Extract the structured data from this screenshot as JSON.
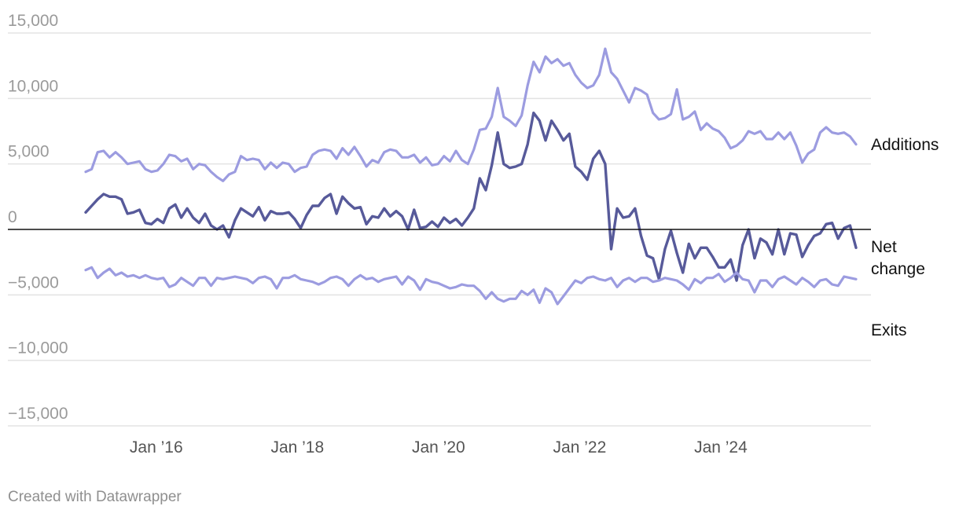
{
  "chart_data": {
    "type": "line",
    "y_ticks": [
      15000,
      10000,
      5000,
      0,
      -5000,
      -10000,
      -15000
    ],
    "y_tick_labels": [
      "15,000",
      "10,000",
      "5,000",
      "0",
      "−5,000",
      "−10,000",
      "−15,000"
    ],
    "ylim": [
      -15000,
      15000
    ],
    "x_ticks": [
      "2016-01",
      "2018-01",
      "2020-01",
      "2022-01",
      "2024-01"
    ],
    "x_tick_labels": [
      "Jan ’16",
      "Jan ’18",
      "Jan ’20",
      "Jan ’22",
      "Jan ’24"
    ],
    "x_start": "2015-01",
    "x_end": "2025-12",
    "grid": true,
    "legend": "inline labels at right end of lines",
    "series": [
      {
        "name": "Additions",
        "color": "#9c9ce0",
        "values": [
          4400,
          4600,
          5900,
          6000,
          5500,
          5900,
          5500,
          5000,
          5100,
          5200,
          4600,
          4400,
          4500,
          5000,
          5700,
          5600,
          5200,
          5400,
          4600,
          5000,
          4900,
          4400,
          4000,
          3700,
          4200,
          4400,
          5600,
          5300,
          5400,
          5300,
          4600,
          5100,
          4700,
          5100,
          5000,
          4400,
          4700,
          4800,
          5700,
          6000,
          6100,
          6000,
          5400,
          6200,
          5700,
          6300,
          5600,
          4800,
          5300,
          5100,
          5900,
          6100,
          6000,
          5500,
          5500,
          5700,
          5100,
          5500,
          4900,
          5000,
          5600,
          5200,
          6000,
          5300,
          5000,
          6100,
          7600,
          7700,
          8600,
          10800,
          8600,
          8300,
          7900,
          8700,
          11000,
          12800,
          12000,
          13200,
          12700,
          13000,
          12500,
          12700,
          11800,
          11200,
          10800,
          11000,
          11800,
          13800,
          12000,
          11500,
          10600,
          9700,
          10800,
          10600,
          10300,
          8900,
          8400,
          8500,
          8800,
          10700,
          8400,
          8600,
          9000,
          7600,
          8100,
          7700,
          7500,
          7000,
          6200,
          6400,
          6800,
          7500,
          7300,
          7500,
          6900,
          6900,
          7400,
          6900,
          7400,
          6400,
          5100,
          5800,
          6100,
          7400,
          7800,
          7400,
          7300,
          7400,
          7100,
          6500
        ]
      },
      {
        "name": "Net change",
        "color": "#575a9a",
        "values": [
          1300,
          1800,
          2300,
          2700,
          2500,
          2500,
          2300,
          1200,
          1300,
          1500,
          500,
          400,
          800,
          500,
          1600,
          1900,
          900,
          1600,
          900,
          500,
          1200,
          300,
          0,
          300,
          -600,
          700,
          1600,
          1300,
          1000,
          1700,
          700,
          1400,
          1200,
          1200,
          1300,
          800,
          100,
          1100,
          1800,
          1800,
          2400,
          2700,
          1200,
          2500,
          2000,
          1600,
          1700,
          400,
          1000,
          900,
          1600,
          1000,
          1400,
          1000,
          0,
          1500,
          100,
          200,
          600,
          200,
          900,
          500,
          800,
          300,
          900,
          1600,
          3900,
          3000,
          4900,
          7400,
          5000,
          4700,
          4800,
          5000,
          6500,
          8900,
          8300,
          6800,
          8300,
          7600,
          6800,
          7300,
          4800,
          4400,
          3800,
          5400,
          6000,
          5000,
          -1500,
          1600,
          900,
          1000,
          1600,
          -500,
          -2000,
          -2200,
          -3800,
          -1500,
          -100,
          -1800,
          -3300,
          -1100,
          -2200,
          -1400,
          -1400,
          -2100,
          -2900,
          -2900,
          -2300,
          -3900,
          -1200,
          0,
          -2200,
          -700,
          -1000,
          -1900,
          0,
          -1900,
          -300,
          -400,
          -2100,
          -1200,
          -500,
          -300,
          400,
          500,
          -700,
          100,
          300,
          -1400
        ]
      },
      {
        "name": "Exits",
        "color": "#9c9ce0",
        "values": [
          -3100,
          -2900,
          -3700,
          -3300,
          -3000,
          -3500,
          -3300,
          -3600,
          -3500,
          -3700,
          -3500,
          -3700,
          -3800,
          -3700,
          -4400,
          -4200,
          -3700,
          -4000,
          -4300,
          -3700,
          -3700,
          -4300,
          -3700,
          -3800,
          -3700,
          -3600,
          -3700,
          -3800,
          -4100,
          -3700,
          -3600,
          -3800,
          -4500,
          -3700,
          -3700,
          -3500,
          -3800,
          -3900,
          -4000,
          -4200,
          -4000,
          -3700,
          -3600,
          -3800,
          -4300,
          -3800,
          -3500,
          -3800,
          -3700,
          -4000,
          -3800,
          -3700,
          -3600,
          -4200,
          -3600,
          -3900,
          -4600,
          -3800,
          -4000,
          -4100,
          -4300,
          -4500,
          -4400,
          -4200,
          -4300,
          -4300,
          -4700,
          -5300,
          -4800,
          -5300,
          -5500,
          -5300,
          -5300,
          -4700,
          -5000,
          -4600,
          -5600,
          -4500,
          -4800,
          -5700,
          -5100,
          -4500,
          -3900,
          -4100,
          -3700,
          -3600,
          -3800,
          -3900,
          -3700,
          -4400,
          -3900,
          -3700,
          -4000,
          -3700,
          -3700,
          -4000,
          -3900,
          -3700,
          -3800,
          -3900,
          -4200,
          -4600,
          -3800,
          -4100,
          -3700,
          -3700,
          -3400,
          -4000,
          -3700,
          -3300,
          -3800,
          -3900,
          -4800,
          -3900,
          -3900,
          -4400,
          -3800,
          -3600,
          -3900,
          -4200,
          -3700,
          -4000,
          -4400,
          -3900,
          -3800,
          -4200,
          -4300,
          -3600,
          -3700,
          -3800
        ]
      }
    ]
  },
  "footer": "Created with Datawrapper"
}
